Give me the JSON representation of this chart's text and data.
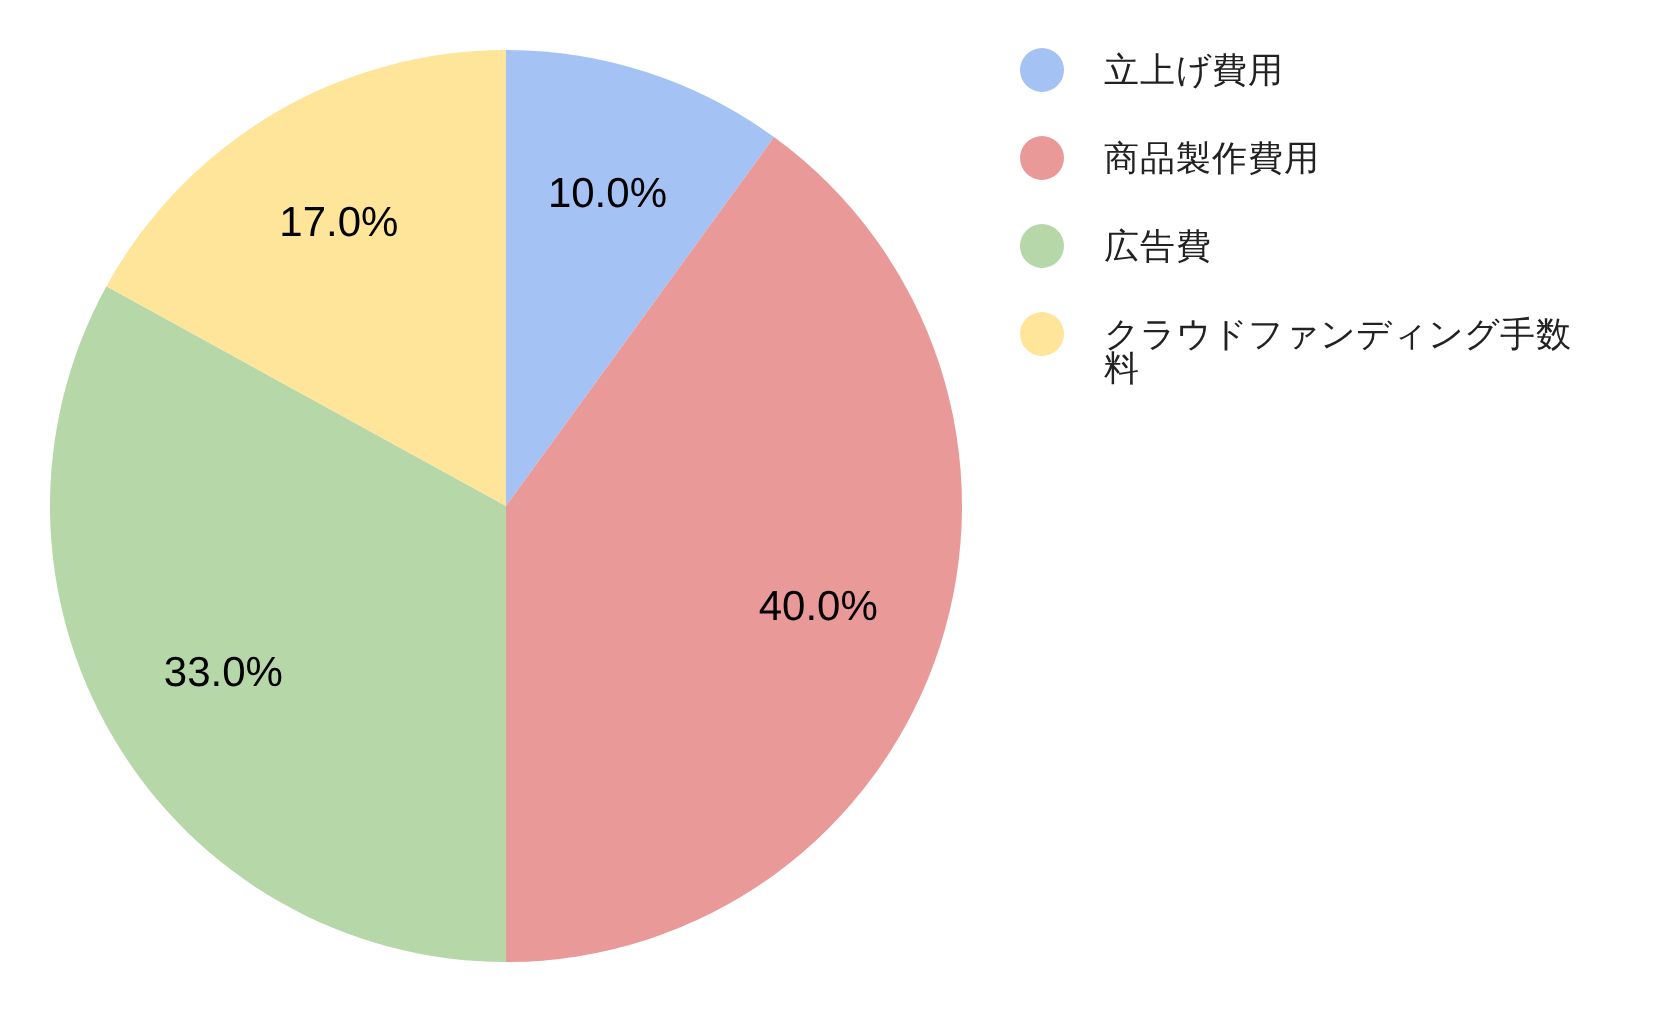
{
  "chart_data": {
    "type": "pie",
    "categories": [
      "立上げ費用",
      "商品製作費用",
      "広告費",
      "クラウドファンディング手数料"
    ],
    "values": [
      10,
      40,
      33,
      17
    ],
    "colors": [
      "#a4c2f4",
      "#ea9999",
      "#b6d7a8",
      "#ffe599"
    ],
    "value_labels": [
      "10.0%",
      "40.0%",
      "33.0%",
      "17.0%"
    ],
    "legend": "right"
  }
}
